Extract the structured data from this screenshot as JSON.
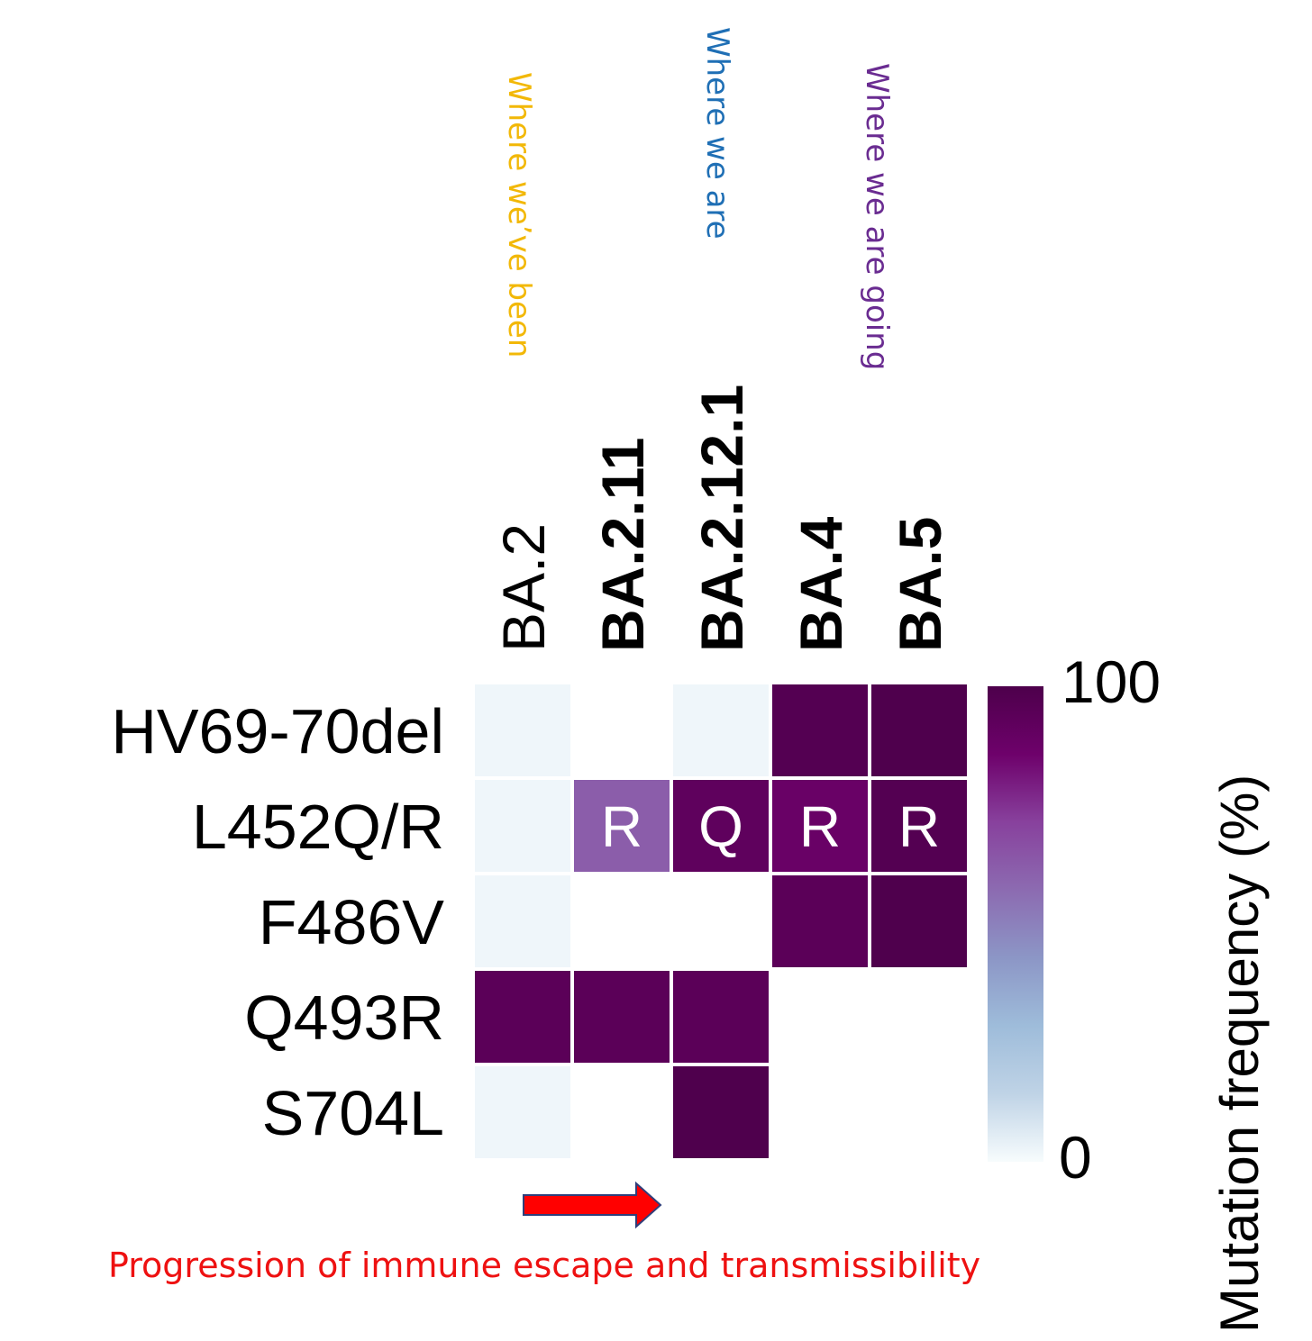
{
  "chart_data": {
    "type": "heatmap",
    "columns": [
      "BA.2",
      "BA.2.11",
      "BA.2.12.1",
      "BA.4",
      "BA.5"
    ],
    "columns_bold": [
      false,
      true,
      true,
      true,
      true
    ],
    "rows": [
      "HV69-70del",
      "L452Q/R",
      "F486V",
      "Q493R",
      "S704L"
    ],
    "values": [
      [
        2,
        0,
        2,
        97,
        99
      ],
      [
        2,
        62,
        92,
        88,
        97
      ],
      [
        2,
        0,
        0,
        94,
        99
      ],
      [
        94,
        94,
        94,
        0,
        0
      ],
      [
        2,
        0,
        99,
        0,
        0
      ]
    ],
    "cell_labels": [
      [
        "",
        "",
        "",
        "",
        ""
      ],
      [
        "",
        "R",
        "Q",
        "R",
        "R"
      ],
      [
        "",
        "",
        "",
        "",
        ""
      ],
      [
        "",
        "",
        "",
        "",
        ""
      ],
      [
        "",
        "",
        "",
        "",
        ""
      ]
    ],
    "colorbar": {
      "title": "Mutation frequency (%)",
      "min_label": "0",
      "max_label": "100",
      "range": [
        0,
        100
      ],
      "stops": [
        "#f7fcfd",
        "#bfd3e6",
        "#9ebcda",
        "#8c96c6",
        "#8c6bb1",
        "#88419d",
        "#6e016b",
        "#4d004b"
      ]
    },
    "column_notes": [
      {
        "text": "Where we’ve been",
        "color": "#f2b807",
        "column": "BA.2"
      },
      {
        "text": "Where we are",
        "color": "#1f6fb5",
        "column": "BA.2.12.1"
      },
      {
        "text": "Where we are going",
        "color": "#6a2c91",
        "column": "BA.5"
      }
    ],
    "caption": {
      "text": "Progression of immune escape and transmissibility",
      "color": "#ee1111",
      "arrow_fill": "#ff0000",
      "arrow_stroke": "#2f3e7a"
    }
  }
}
